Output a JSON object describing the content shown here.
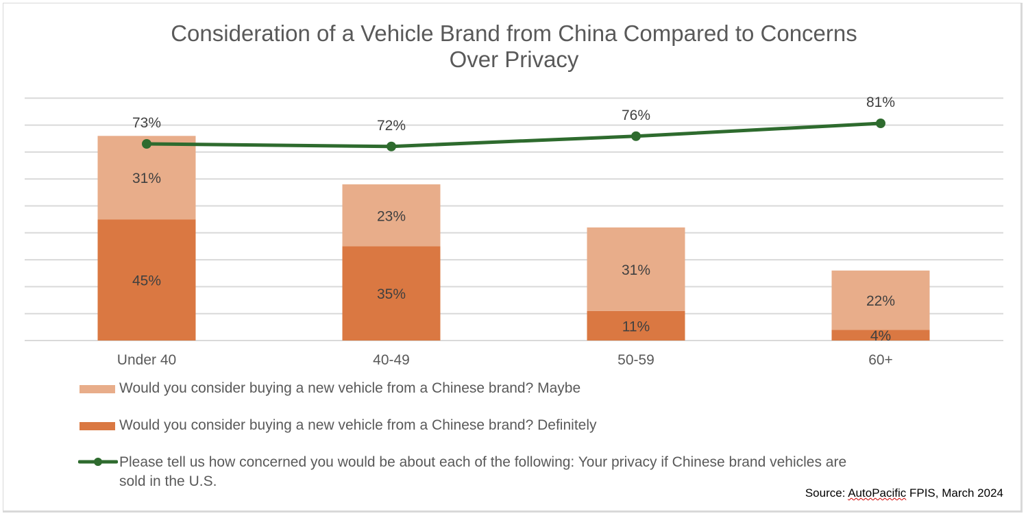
{
  "title_line1": "Consideration of a Vehicle Brand from China Compared to Concerns",
  "title_line2": "Over Privacy",
  "colors": {
    "maybe": "#E8AD8A",
    "definitely": "#DA7842",
    "line": "#2E6B2E",
    "grid": "#D9D9D9",
    "text": "#595959",
    "label": "#404040"
  },
  "legend": {
    "maybe": "Would you consider buying a new vehicle from a Chinese brand? Maybe",
    "definitely": "Would you consider buying a new vehicle from a Chinese brand? Definitely",
    "privacy_line1": "Please tell us how concerned you would be about each of the following: Your privacy if Chinese brand vehicles are",
    "privacy_line2": "sold in the U.S."
  },
  "source_prefix": "Source: ",
  "source_brand": "AutoPacific",
  "source_suffix": " FPIS, March 2024",
  "chart_data": {
    "type": "bar",
    "stacked": true,
    "title": "Consideration of a Vehicle Brand from China Compared to Concerns Over Privacy",
    "categories": [
      "Under 40",
      "40-49",
      "50-59",
      "60+"
    ],
    "series": [
      {
        "name": "Would you consider buying a new vehicle from a Chinese brand? Definitely",
        "type": "bar",
        "values": [
          45,
          35,
          11,
          4
        ],
        "labels": [
          "45%",
          "35%",
          "11%",
          "4%"
        ]
      },
      {
        "name": "Would you consider buying a new vehicle from a Chinese brand? Maybe",
        "type": "bar",
        "values": [
          31,
          23,
          31,
          22
        ],
        "labels": [
          "31%",
          "23%",
          "31%",
          "22%"
        ]
      },
      {
        "name": "Please tell us how concerned you would be about each of the following: Your privacy if Chinese brand vehicles are sold in the U.S.",
        "type": "line",
        "axis": "secondary",
        "values": [
          73,
          72,
          76,
          81
        ],
        "labels": [
          "73%",
          "72%",
          "76%",
          "81%"
        ]
      }
    ],
    "xlabel": "",
    "ylabel": "",
    "ylim": [
      0,
      90
    ],
    "grid": true,
    "axis_labels_visible": false,
    "legend_position": "bottom"
  }
}
